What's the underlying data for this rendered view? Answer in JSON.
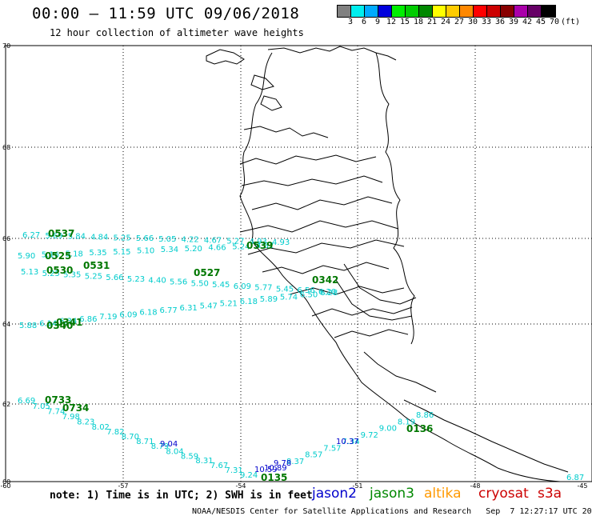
{
  "header": {
    "title": "00:00 — 11:59 UTC 09/06/2018",
    "subtitle": "12 hour collection of altimeter wave heights"
  },
  "colorbar": {
    "swatches": [
      "#808080",
      "#00eeee",
      "#00aaff",
      "#0000dd",
      "#00ee00",
      "#00cc00",
      "#008800",
      "#ffff00",
      "#ffcc00",
      "#ff8800",
      "#ff0000",
      "#cc0000",
      "#880000",
      "#aa00aa",
      "#660066",
      "#000000"
    ],
    "labels": [
      "3",
      "6",
      "9",
      "12",
      "15",
      "18",
      "21",
      "24",
      "27",
      "30",
      "33",
      "36",
      "39",
      "42",
      "45",
      "70",
      "(ft)"
    ]
  },
  "map": {
    "lat_labels": [
      "70",
      "68",
      "66",
      "64",
      "62",
      "60"
    ],
    "lon_labels": [
      "-60",
      "-57",
      "-54",
      "-51",
      "-48",
      "-45"
    ],
    "tracks": [
      {
        "name": "track-a",
        "color": "#00cccc",
        "labels": [
          "6.27",
          "5.69",
          "5.84",
          "4.84",
          "5.25",
          "5.66",
          "5.05",
          "4.22",
          "4.67",
          "5.27",
          "4.93",
          "4.93"
        ]
      },
      {
        "name": "track-b",
        "color": "#00cccc",
        "labels": [
          "5.90",
          "5.16",
          "5.18",
          "5.35",
          "5.15",
          "5.10",
          "5.34",
          "5.20",
          "4.66",
          "5.24",
          "4.82"
        ]
      },
      {
        "name": "track-c",
        "color": "#00cccc",
        "labels": [
          "5.13",
          "5.25",
          "5.35",
          "5.25",
          "5.66",
          "5.23",
          "4.40",
          "5.56",
          "5.50",
          "5.45",
          "6.09",
          "5.77",
          "5.45",
          "6.56",
          "6.20"
        ]
      },
      {
        "name": "track-d",
        "color": "#00cccc",
        "labels": [
          "5.88",
          "6.14",
          "6.34",
          "6.86",
          "7.19",
          "6.09",
          "6.18",
          "6.77",
          "6.31",
          "5.47",
          "5.21",
          "6.18",
          "5.89",
          "5.74",
          "6.50",
          "6.28"
        ]
      },
      {
        "name": "track-e",
        "color": "#00cccc",
        "labels": [
          "6.69",
          "7.05",
          "7.74",
          "7.98",
          "8.23",
          "8.02",
          "7.82",
          "8.70",
          "8.71",
          "8.79",
          "8.04",
          "8.59",
          "8.31",
          "7.67",
          "7.31",
          "9.24"
        ]
      },
      {
        "name": "track-f",
        "color": "#00cccc",
        "labels": [
          "8.37",
          "8.57",
          "7.57",
          "7.34",
          "9.72",
          "9.00",
          "8.19",
          "8.86"
        ]
      }
    ],
    "dark_blue_labels": [
      "9.04",
      "10.37",
      "9.78",
      "10.59",
      "10.89"
    ],
    "time_labels": [
      "0537",
      "0525",
      "0531",
      "0530",
      "0527",
      "0539",
      "0342",
      "0340",
      "0341",
      "0733",
      "0734",
      "0136",
      "0135"
    ],
    "corner_label": "6.87"
  },
  "footer": {
    "note": "note: 1) Time is in UTC; 2) SWH is in feet",
    "satellites": [
      {
        "name": "jason2",
        "color": "#0000cc"
      },
      {
        "name": "jason3",
        "color": "#008800"
      },
      {
        "name": "altika",
        "color": "#ff9900"
      },
      {
        "name": "cryosat",
        "color": "#cc0000"
      },
      {
        "name": "s3a",
        "color": "#cc0000"
      }
    ],
    "credit": "NOAA/NESDIS Center for Satellite Applications and Research   Sep  7 12:27:17 UTC 2018"
  }
}
